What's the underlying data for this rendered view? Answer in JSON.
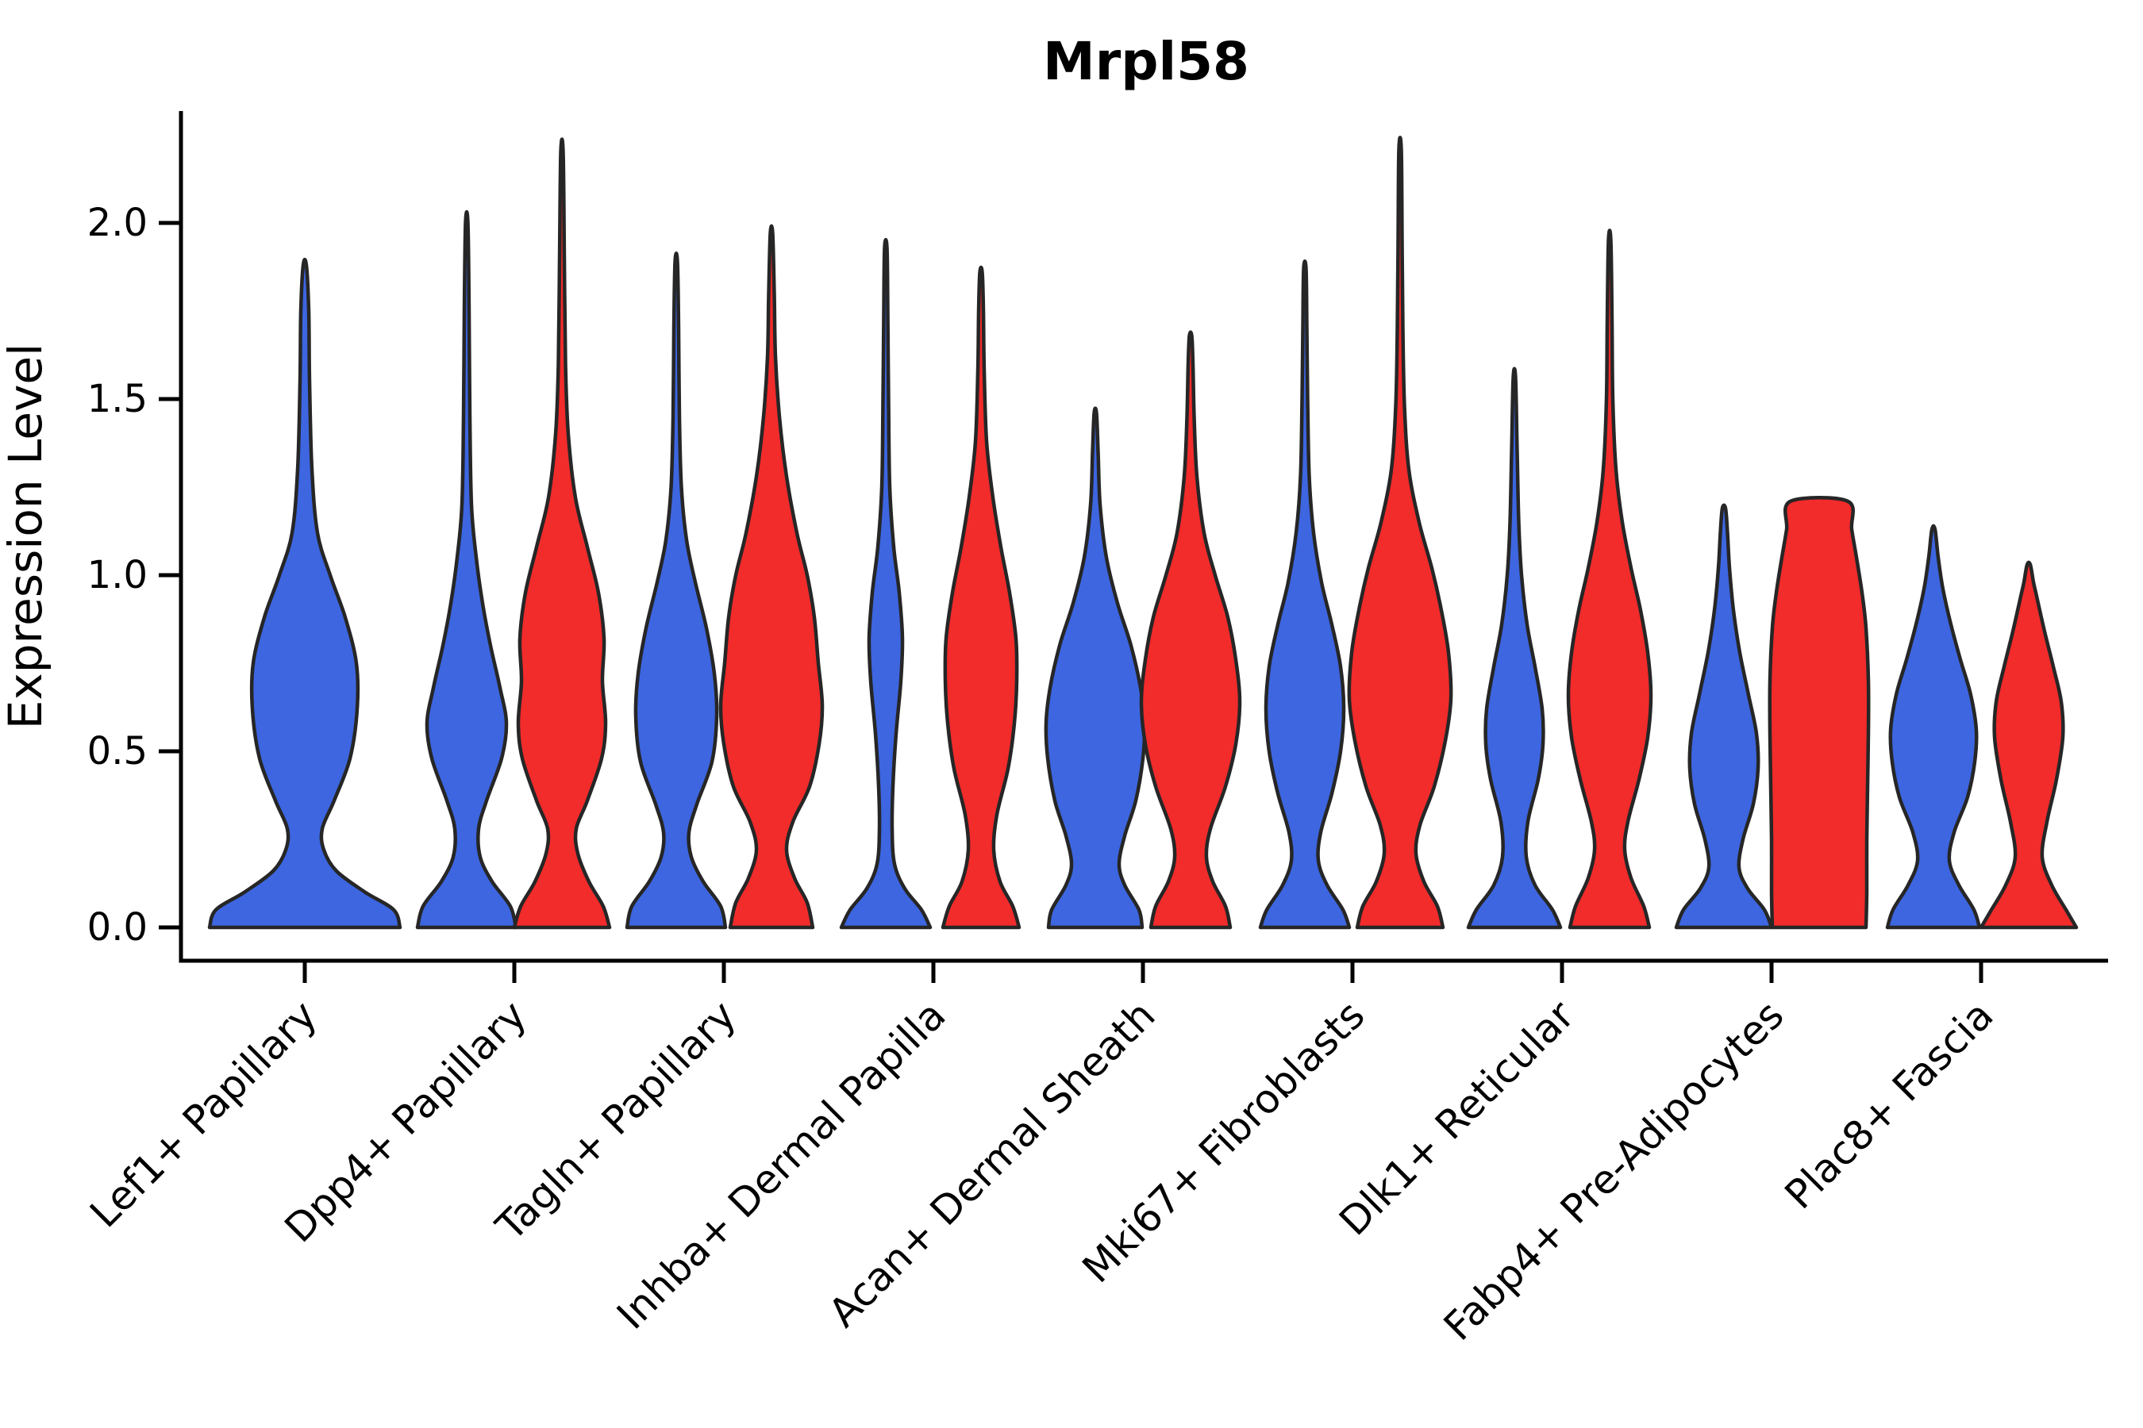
{
  "title": "Mrpl58",
  "y_axis": {
    "label": "Expression Level",
    "ticks": [
      "0.0",
      "0.5",
      "1.0",
      "1.5",
      "2.0"
    ],
    "tick_values": [
      0,
      0.5,
      1.0,
      1.5,
      2.0
    ]
  },
  "x_axis": {
    "categories": [
      "Lef1+ Papillary",
      "Dpp4+ Papillary",
      "Tagln+ Papillary",
      "Inhba+ Dermal Papilla",
      "Acan+ Dermal Sheath",
      "Mki67+ Fibroblasts",
      "Dlk1+ Reticular",
      "Fabp4+ Pre-Adipocytes",
      "Plac8+ Fascia"
    ]
  },
  "colors": {
    "blue": "#3D66E0",
    "red": "#F22B2B",
    "outline": "#262626",
    "axis": "#000000"
  },
  "chart_data": {
    "type": "violin",
    "title": "Mrpl58",
    "xlabel": "",
    "ylabel": "Expression Level",
    "ylim": [
      0,
      2.32
    ],
    "grid": false,
    "legend": "none",
    "categories": [
      "Lef1+ Papillary",
      "Dpp4+ Papillary",
      "Tagln+ Papillary",
      "Inhba+ Dermal Papilla",
      "Acan+ Dermal Sheath",
      "Mki67+ Fibroblasts",
      "Dlk1+ Reticular",
      "Fabp4+ Pre-Adipocytes",
      "Plac8+ Fascia"
    ],
    "series": [
      {
        "name": "group-blue",
        "color": "#3D66E0",
        "max_expression": [
          1.88,
          2.0,
          1.89,
          1.93,
          1.46,
          1.87,
          1.56,
          1.19,
          1.13
        ]
      },
      {
        "name": "group-red",
        "color": "#F22B2B",
        "max_expression": [
          null,
          2.2,
          1.97,
          1.86,
          1.68,
          2.21,
          1.95,
          1.21,
          1.03
        ]
      }
    ],
    "violins": [
      {
        "category_index": 0,
        "group": "blue",
        "single": true,
        "max": 1.88,
        "profile": [
          [
            0,
            120
          ],
          [
            0.05,
            112
          ],
          [
            0.1,
            76
          ],
          [
            0.16,
            40
          ],
          [
            0.22,
            24
          ],
          [
            0.28,
            22
          ],
          [
            0.36,
            37
          ],
          [
            0.48,
            57
          ],
          [
            0.62,
            66
          ],
          [
            0.75,
            65
          ],
          [
            0.88,
            51
          ],
          [
            1.0,
            32
          ],
          [
            1.12,
            16
          ],
          [
            1.3,
            9
          ],
          [
            1.55,
            6
          ],
          [
            1.75,
            5
          ],
          [
            1.88,
            2
          ]
        ]
      },
      {
        "category_index": 1,
        "group": "blue",
        "max": 2.0,
        "profile": [
          [
            0,
            62
          ],
          [
            0.06,
            55
          ],
          [
            0.13,
            32
          ],
          [
            0.2,
            17
          ],
          [
            0.28,
            15
          ],
          [
            0.36,
            25
          ],
          [
            0.48,
            44
          ],
          [
            0.58,
            50
          ],
          [
            0.68,
            42
          ],
          [
            0.8,
            30
          ],
          [
            0.92,
            20
          ],
          [
            1.05,
            12
          ],
          [
            1.2,
            6
          ],
          [
            1.45,
            4
          ],
          [
            1.75,
            3
          ],
          [
            2.0,
            1.5
          ]
        ]
      },
      {
        "category_index": 1,
        "group": "red",
        "max": 2.2,
        "profile": [
          [
            0,
            60
          ],
          [
            0.06,
            52
          ],
          [
            0.13,
            34
          ],
          [
            0.21,
            20
          ],
          [
            0.28,
            18
          ],
          [
            0.36,
            32
          ],
          [
            0.48,
            50
          ],
          [
            0.58,
            55
          ],
          [
            0.7,
            51
          ],
          [
            0.82,
            53
          ],
          [
            0.95,
            46
          ],
          [
            1.08,
            32
          ],
          [
            1.22,
            17
          ],
          [
            1.4,
            8
          ],
          [
            1.6,
            4.5
          ],
          [
            1.9,
            3
          ],
          [
            2.2,
            1.5
          ]
        ]
      },
      {
        "category_index": 2,
        "group": "blue",
        "max": 1.89,
        "profile": [
          [
            0,
            62
          ],
          [
            0.06,
            56
          ],
          [
            0.13,
            34
          ],
          [
            0.2,
            19
          ],
          [
            0.27,
            16
          ],
          [
            0.35,
            26
          ],
          [
            0.47,
            45
          ],
          [
            0.6,
            51
          ],
          [
            0.72,
            48
          ],
          [
            0.85,
            38
          ],
          [
            0.98,
            24
          ],
          [
            1.1,
            13
          ],
          [
            1.25,
            6.5
          ],
          [
            1.45,
            4
          ],
          [
            1.7,
            3
          ],
          [
            1.89,
            1.5
          ]
        ]
      },
      {
        "category_index": 2,
        "group": "red",
        "max": 1.97,
        "profile": [
          [
            0,
            52
          ],
          [
            0.07,
            45
          ],
          [
            0.14,
            29
          ],
          [
            0.22,
            19
          ],
          [
            0.3,
            27
          ],
          [
            0.4,
            48
          ],
          [
            0.52,
            60
          ],
          [
            0.63,
            64
          ],
          [
            0.75,
            59
          ],
          [
            0.88,
            54
          ],
          [
            1.0,
            45
          ],
          [
            1.12,
            32
          ],
          [
            1.28,
            19
          ],
          [
            1.45,
            10
          ],
          [
            1.62,
            5
          ],
          [
            1.8,
            3.5
          ],
          [
            1.97,
            1.5
          ]
        ]
      },
      {
        "category_index": 3,
        "group": "blue",
        "max": 1.93,
        "profile": [
          [
            0,
            56
          ],
          [
            0.05,
            45
          ],
          [
            0.11,
            24
          ],
          [
            0.18,
            11
          ],
          [
            0.28,
            8
          ],
          [
            0.4,
            9
          ],
          [
            0.55,
            13
          ],
          [
            0.7,
            19
          ],
          [
            0.82,
            21
          ],
          [
            0.95,
            17
          ],
          [
            1.08,
            10
          ],
          [
            1.25,
            5
          ],
          [
            1.5,
            3.5
          ],
          [
            1.75,
            2.5
          ],
          [
            1.93,
            1.5
          ]
        ]
      },
      {
        "category_index": 3,
        "group": "red",
        "max": 1.86,
        "profile": [
          [
            0,
            48
          ],
          [
            0.06,
            40
          ],
          [
            0.13,
            24
          ],
          [
            0.22,
            16
          ],
          [
            0.32,
            20
          ],
          [
            0.45,
            34
          ],
          [
            0.58,
            42
          ],
          [
            0.7,
            45
          ],
          [
            0.82,
            44
          ],
          [
            0.95,
            36
          ],
          [
            1.08,
            25
          ],
          [
            1.22,
            15
          ],
          [
            1.38,
            7
          ],
          [
            1.58,
            4
          ],
          [
            1.75,
            3
          ],
          [
            1.86,
            1.5
          ]
        ]
      },
      {
        "category_index": 4,
        "group": "blue",
        "max": 1.46,
        "profile": [
          [
            0,
            59
          ],
          [
            0.05,
            55
          ],
          [
            0.12,
            37
          ],
          [
            0.18,
            30
          ],
          [
            0.26,
            37
          ],
          [
            0.36,
            51
          ],
          [
            0.48,
            60
          ],
          [
            0.58,
            62
          ],
          [
            0.68,
            57
          ],
          [
            0.8,
            45
          ],
          [
            0.92,
            28
          ],
          [
            1.05,
            14
          ],
          [
            1.2,
            6
          ],
          [
            1.35,
            3.5
          ],
          [
            1.46,
            1.5
          ]
        ]
      },
      {
        "category_index": 4,
        "group": "red",
        "max": 1.68,
        "profile": [
          [
            0,
            50
          ],
          [
            0.06,
            44
          ],
          [
            0.13,
            28
          ],
          [
            0.2,
            20
          ],
          [
            0.28,
            25
          ],
          [
            0.4,
            44
          ],
          [
            0.52,
            57
          ],
          [
            0.64,
            62
          ],
          [
            0.76,
            57
          ],
          [
            0.88,
            47
          ],
          [
            1.0,
            31
          ],
          [
            1.12,
            17
          ],
          [
            1.28,
            8
          ],
          [
            1.45,
            4.5
          ],
          [
            1.6,
            3
          ],
          [
            1.68,
            1.5
          ]
        ]
      },
      {
        "category_index": 5,
        "group": "blue",
        "max": 1.87,
        "profile": [
          [
            0,
            56
          ],
          [
            0.05,
            48
          ],
          [
            0.12,
            28
          ],
          [
            0.19,
            17
          ],
          [
            0.27,
            20
          ],
          [
            0.38,
            34
          ],
          [
            0.5,
            45
          ],
          [
            0.62,
            49
          ],
          [
            0.74,
            45
          ],
          [
            0.86,
            34
          ],
          [
            0.98,
            21
          ],
          [
            1.12,
            11
          ],
          [
            1.28,
            5.5
          ],
          [
            1.5,
            3.5
          ],
          [
            1.7,
            2.5
          ],
          [
            1.87,
            1.5
          ]
        ]
      },
      {
        "category_index": 5,
        "group": "red",
        "max": 2.21,
        "profile": [
          [
            0,
            54
          ],
          [
            0.06,
            47
          ],
          [
            0.13,
            30
          ],
          [
            0.21,
            20
          ],
          [
            0.29,
            25
          ],
          [
            0.4,
            43
          ],
          [
            0.53,
            57
          ],
          [
            0.65,
            64
          ],
          [
            0.78,
            61
          ],
          [
            0.9,
            52
          ],
          [
            1.02,
            40
          ],
          [
            1.15,
            24
          ],
          [
            1.3,
            11
          ],
          [
            1.48,
            5.5
          ],
          [
            1.7,
            3.5
          ],
          [
            1.95,
            2.5
          ],
          [
            2.21,
            1.5
          ]
        ]
      },
      {
        "category_index": 6,
        "group": "blue",
        "max": 1.56,
        "profile": [
          [
            0,
            58
          ],
          [
            0.05,
            48
          ],
          [
            0.12,
            26
          ],
          [
            0.2,
            15
          ],
          [
            0.3,
            17
          ],
          [
            0.42,
            30
          ],
          [
            0.52,
            36
          ],
          [
            0.62,
            35
          ],
          [
            0.74,
            26
          ],
          [
            0.86,
            16
          ],
          [
            1.0,
            9
          ],
          [
            1.15,
            5.5
          ],
          [
            1.35,
            3.5
          ],
          [
            1.56,
            1.5
          ]
        ]
      },
      {
        "category_index": 6,
        "group": "red",
        "max": 1.95,
        "profile": [
          [
            0,
            50
          ],
          [
            0.06,
            43
          ],
          [
            0.14,
            27
          ],
          [
            0.22,
            19
          ],
          [
            0.3,
            23
          ],
          [
            0.42,
            37
          ],
          [
            0.54,
            48
          ],
          [
            0.66,
            52
          ],
          [
            0.78,
            48
          ],
          [
            0.9,
            39
          ],
          [
            1.02,
            27
          ],
          [
            1.15,
            16
          ],
          [
            1.3,
            8
          ],
          [
            1.5,
            4
          ],
          [
            1.72,
            3
          ],
          [
            1.95,
            1.5
          ]
        ]
      },
      {
        "category_index": 7,
        "group": "blue",
        "max": 1.19,
        "profile": [
          [
            0,
            60
          ],
          [
            0.05,
            51
          ],
          [
            0.11,
            30
          ],
          [
            0.17,
            19
          ],
          [
            0.25,
            24
          ],
          [
            0.35,
            37
          ],
          [
            0.45,
            43
          ],
          [
            0.55,
            41
          ],
          [
            0.66,
            31
          ],
          [
            0.78,
            20
          ],
          [
            0.9,
            12
          ],
          [
            1.02,
            7
          ],
          [
            1.12,
            4.5
          ],
          [
            1.19,
            2
          ]
        ]
      },
      {
        "category_index": 7,
        "group": "red",
        "max": 1.21,
        "flat_top": true,
        "profile": [
          [
            0,
            59
          ],
          [
            0.1,
            60
          ],
          [
            0.25,
            60
          ],
          [
            0.4,
            61
          ],
          [
            0.55,
            62
          ],
          [
            0.7,
            62
          ],
          [
            0.85,
            59
          ],
          [
            0.95,
            54
          ],
          [
            1.05,
            47
          ],
          [
            1.13,
            41
          ],
          [
            1.21,
            36
          ]
        ]
      },
      {
        "category_index": 8,
        "group": "blue",
        "max": 1.13,
        "profile": [
          [
            0,
            58
          ],
          [
            0.05,
            51
          ],
          [
            0.12,
            32
          ],
          [
            0.19,
            20
          ],
          [
            0.27,
            26
          ],
          [
            0.37,
            43
          ],
          [
            0.47,
            52
          ],
          [
            0.56,
            54
          ],
          [
            0.66,
            47
          ],
          [
            0.76,
            34
          ],
          [
            0.86,
            22
          ],
          [
            0.96,
            12
          ],
          [
            1.05,
            6
          ],
          [
            1.13,
            2
          ]
        ]
      },
      {
        "category_index": 8,
        "group": "red",
        "max": 1.03,
        "profile": [
          [
            0,
            60
          ],
          [
            0.05,
            47
          ],
          [
            0.12,
            29
          ],
          [
            0.2,
            17
          ],
          [
            0.3,
            23
          ],
          [
            0.42,
            35
          ],
          [
            0.54,
            43
          ],
          [
            0.64,
            41
          ],
          [
            0.74,
            31
          ],
          [
            0.84,
            20
          ],
          [
            0.94,
            10
          ],
          [
            0.98,
            6
          ],
          [
            1.03,
            2
          ]
        ]
      }
    ]
  }
}
